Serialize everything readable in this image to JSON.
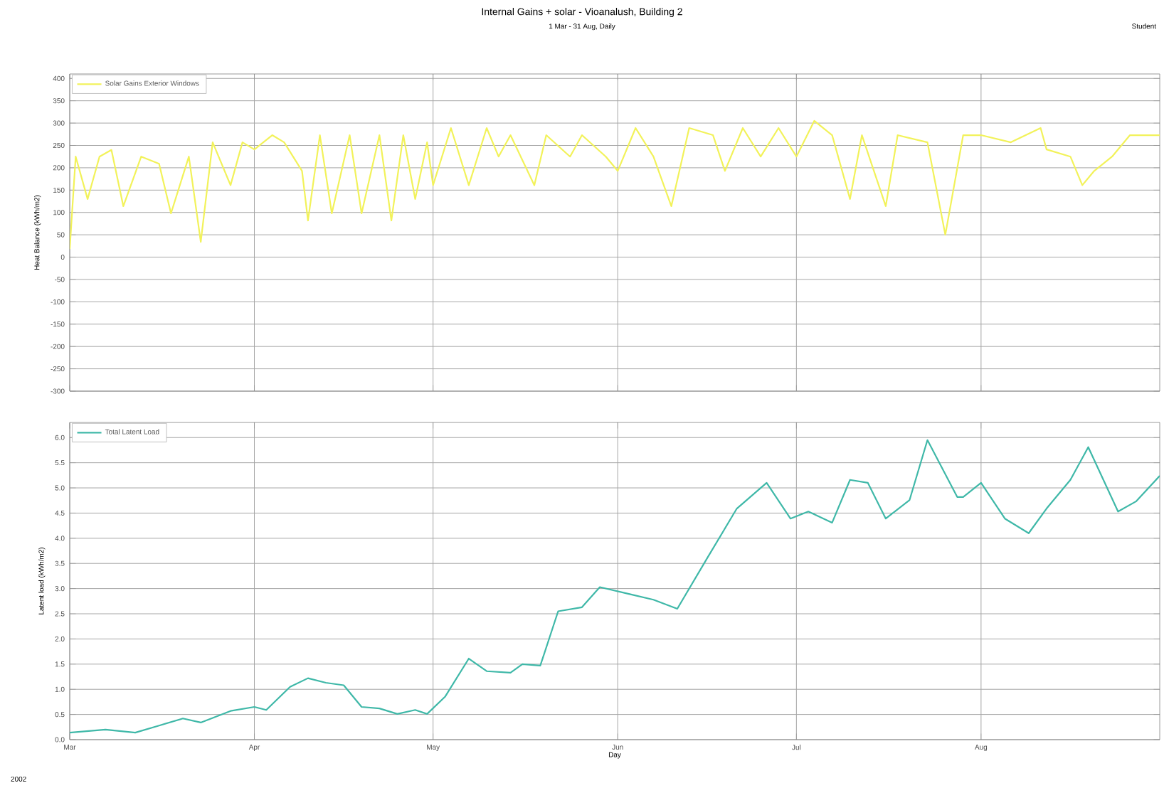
{
  "chart_data": [
    {
      "type": "line",
      "title": "Internal Gains + solar - Vioanalush, Building 2",
      "subtitle": "1 Mar - 31 Aug, Daily",
      "annotations": [
        "Student"
      ],
      "ylabel": "Heat Balance (kWh/m2)",
      "grid": true,
      "legend": "top left",
      "tick_labels": "y",
      "marker": "none",
      "line_style": "solid",
      "xlim": [
        "2002-03-01",
        "2002-08-31"
      ],
      "xticks": [
        {
          "value": "2002-03-01",
          "label": null
        },
        {
          "value": "2002-04-01",
          "label": null
        },
        {
          "value": "2002-05-01",
          "label": null
        },
        {
          "value": "2002-06-01",
          "label": null
        },
        {
          "value": "2002-07-01",
          "label": null
        },
        {
          "value": "2002-08-01",
          "label": null
        }
      ],
      "ylim": [
        -300,
        410
      ],
      "yticks": [
        -300,
        -250,
        -200,
        -150,
        -100,
        -50,
        0,
        50,
        100,
        150,
        200,
        250,
        300,
        350,
        400
      ],
      "x": [
        "2002-03-01",
        "2002-03-02",
        "2002-03-04",
        "2002-03-06",
        "2002-03-08",
        "2002-03-10",
        "2002-03-13",
        "2002-03-16",
        "2002-03-18",
        "2002-03-21",
        "2002-03-23",
        "2002-03-25",
        "2002-03-28",
        "2002-03-30",
        "2002-04-01",
        "2002-04-04",
        "2002-04-06",
        "2002-04-09",
        "2002-04-10",
        "2002-04-12",
        "2002-04-14",
        "2002-04-17",
        "2002-04-19",
        "2002-04-22",
        "2002-04-24",
        "2002-04-26",
        "2002-04-28",
        "2002-04-30",
        "2002-05-01",
        "2002-05-04",
        "2002-05-07",
        "2002-05-10",
        "2002-05-12",
        "2002-05-14",
        "2002-05-18",
        "2002-05-20",
        "2002-05-24",
        "2002-05-26",
        "2002-05-30",
        "2002-06-01",
        "2002-06-04",
        "2002-06-07",
        "2002-06-10",
        "2002-06-13",
        "2002-06-17",
        "2002-06-19",
        "2002-06-22",
        "2002-06-25",
        "2002-06-28",
        "2002-07-01",
        "2002-07-04",
        "2002-07-07",
        "2002-07-10",
        "2002-07-12",
        "2002-07-16",
        "2002-07-18",
        "2002-07-23",
        "2002-07-26",
        "2002-07-29",
        "2002-08-01",
        "2002-08-06",
        "2002-08-11",
        "2002-08-12",
        "2002-08-16",
        "2002-08-18",
        "2002-08-20",
        "2002-08-23",
        "2002-08-26",
        "2002-08-31"
      ],
      "series": [
        {
          "name": "Solar Gains Exterior Windows",
          "color": "#f2f25a",
          "values": [
            18,
            225,
            130,
            225,
            240,
            114,
            225,
            209,
            98,
            225,
            34,
            257,
            161,
            257,
            241,
            273,
            257,
            193,
            82,
            273,
            98,
            273,
            98,
            273,
            82,
            273,
            130,
            257,
            161,
            289,
            161,
            289,
            225,
            273,
            161,
            273,
            225,
            273,
            225,
            193,
            289,
            225,
            114,
            289,
            273,
            193,
            289,
            225,
            289,
            225,
            305,
            273,
            130,
            273,
            114,
            273,
            257,
            50,
            273,
            273,
            257,
            289,
            241,
            225,
            161,
            193,
            225,
            273,
            273
          ]
        }
      ]
    },
    {
      "type": "line",
      "xlabel": "Day",
      "ylabel": "Latent load (kWh/m2)",
      "annotations": [
        "2002"
      ],
      "grid": true,
      "legend": "top left",
      "marker": "none",
      "line_style": "solid",
      "xlim": [
        "2002-03-01",
        "2002-08-31"
      ],
      "xticks": [
        {
          "value": "2002-03-01",
          "label": "Mar"
        },
        {
          "value": "2002-04-01",
          "label": "Apr"
        },
        {
          "value": "2002-05-01",
          "label": "May"
        },
        {
          "value": "2002-06-01",
          "label": "Jun"
        },
        {
          "value": "2002-07-01",
          "label": "Jul"
        },
        {
          "value": "2002-08-01",
          "label": "Aug"
        }
      ],
      "ylim": [
        0,
        6.3
      ],
      "yticks": [
        {
          "value": 0,
          "label": "0.0"
        },
        {
          "value": 0.5,
          "label": "0.5"
        },
        {
          "value": 1,
          "label": "1.0"
        },
        {
          "value": 1.5,
          "label": "1.5"
        },
        {
          "value": 2,
          "label": "2.0"
        },
        {
          "value": 2.5,
          "label": "2.5"
        },
        {
          "value": 3,
          "label": "3.0"
        },
        {
          "value": 3.5,
          "label": "3.5"
        },
        {
          "value": 4,
          "label": "4.0"
        },
        {
          "value": 4.5,
          "label": "4.5"
        },
        {
          "value": 5,
          "label": "5.0"
        },
        {
          "value": 5.5,
          "label": "5.5"
        },
        {
          "value": 6,
          "label": "6.0"
        }
      ],
      "x": [
        "2002-03-01",
        "2002-03-07",
        "2002-03-12",
        "2002-03-16",
        "2002-03-20",
        "2002-03-23",
        "2002-03-28",
        "2002-04-01",
        "2002-04-03",
        "2002-04-07",
        "2002-04-10",
        "2002-04-13",
        "2002-04-16",
        "2002-04-19",
        "2002-04-22",
        "2002-04-25",
        "2002-04-28",
        "2002-04-30",
        "2002-05-03",
        "2002-05-07",
        "2002-05-10",
        "2002-05-14",
        "2002-05-16",
        "2002-05-19",
        "2002-05-22",
        "2002-05-26",
        "2002-05-29",
        "2002-06-03",
        "2002-06-07",
        "2002-06-11",
        "2002-06-16",
        "2002-06-21",
        "2002-06-26",
        "2002-06-30",
        "2002-07-03",
        "2002-07-07",
        "2002-07-10",
        "2002-07-13",
        "2002-07-16",
        "2002-07-20",
        "2002-07-23",
        "2002-07-28",
        "2002-07-29",
        "2002-08-01",
        "2002-08-05",
        "2002-08-09",
        "2002-08-12",
        "2002-08-16",
        "2002-08-19",
        "2002-08-24",
        "2002-08-27",
        "2002-08-31"
      ],
      "series": [
        {
          "name": "Total Latent Load",
          "color": "#3fb8a8",
          "values": [
            0.14,
            0.2,
            0.14,
            0.28,
            0.42,
            0.34,
            0.57,
            0.65,
            0.59,
            1.05,
            1.22,
            1.13,
            1.08,
            0.65,
            0.62,
            0.51,
            0.59,
            0.51,
            0.85,
            1.61,
            1.36,
            1.33,
            1.5,
            1.47,
            2.55,
            2.63,
            3.03,
            2.89,
            2.78,
            2.6,
            3.6,
            4.59,
            5.1,
            4.39,
            4.53,
            4.31,
            5.16,
            5.1,
            4.39,
            4.76,
            5.95,
            4.82,
            4.82,
            5.1,
            4.39,
            4.1,
            4.59,
            5.16,
            5.81,
            4.53,
            4.73,
            5.24
          ]
        }
      ]
    }
  ]
}
